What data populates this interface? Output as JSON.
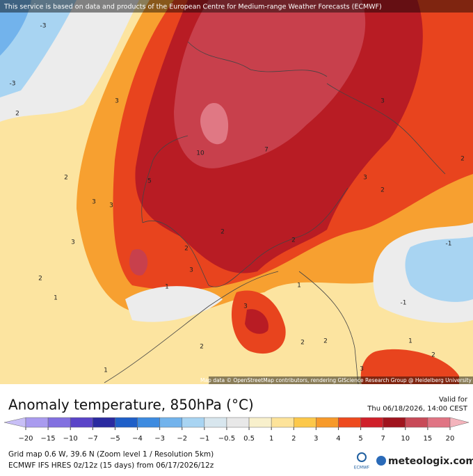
{
  "header": {
    "notice": "This service is based on data and products of the European Centre for Medium-range Weather Forecasts (ECMWF)"
  },
  "map": {
    "attribution": "Map data © OpenStreetMap contributors, rendering GIScience Research Group @ Heidelberg University",
    "contour_labels": [
      "-3",
      "-3",
      "3",
      "2",
      "2",
      "3",
      "3",
      "3",
      "2",
      "1",
      "1",
      "10",
      "7",
      "3",
      "3",
      "2",
      "2",
      "2",
      "2",
      "3",
      "1",
      "3",
      "2",
      "2",
      "2",
      "1",
      "-1",
      "-1",
      "2",
      "1",
      "2",
      "3",
      "5"
    ]
  },
  "legend": {
    "title": "Anomaly temperature, 850hPa (°C)",
    "valid_label": "Valid for",
    "valid_time": "Thu 06/18/2026, 14:00 CEST",
    "ticks": [
      "−20",
      "−15",
      "−10",
      "−7",
      "−5",
      "−4",
      "−3",
      "−2",
      "−1",
      "−0.5",
      "0.5",
      "1",
      "2",
      "3",
      "4",
      "5",
      "7",
      "10",
      "15",
      "20"
    ]
  },
  "footer": {
    "grid": "Grid map 0.6 W, 39.6 N (Zoom level 1 / Resolution 5km)",
    "model": "ECMWF IFS HRES 0z/12z (15 days) from 06/17/2026/12z",
    "ecmwf_logo": "ECMWF",
    "brand": "meteologix.com"
  }
}
